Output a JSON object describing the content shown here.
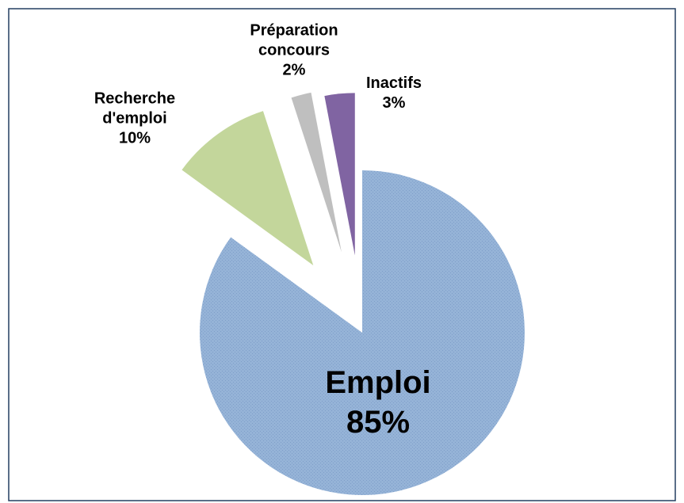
{
  "chart_data": {
    "type": "pie",
    "categories": [
      "Emploi",
      "Recherche d'emploi",
      "Préparation concours",
      "Inactifs"
    ],
    "values": [
      85,
      10,
      2,
      3
    ],
    "value_labels": [
      "85%",
      "10%",
      "2%",
      "3%"
    ],
    "colors": [
      "#95b3d7",
      "#c3d69b",
      "#bfbfbf",
      "#8064a2"
    ]
  }
}
